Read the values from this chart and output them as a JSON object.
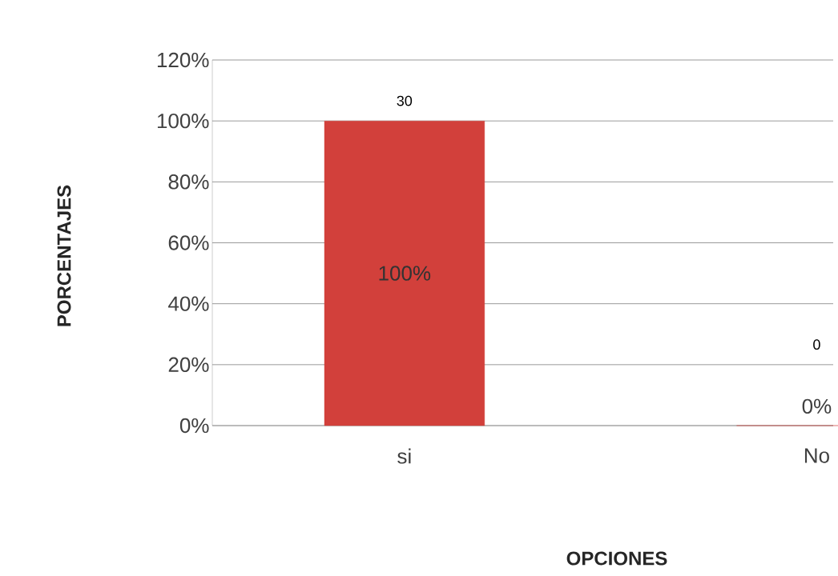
{
  "chart_data": {
    "type": "bar",
    "xlabel": "OPCIONES",
    "ylabel": "PORCENTAJES",
    "categories": [
      "si",
      "No"
    ],
    "values": [
      100,
      0
    ],
    "color": "#d2403b",
    "value_labels": [
      "100%",
      "0%"
    ],
    "annotations": [
      "30",
      "0"
    ],
    "ylim": [
      0,
      120
    ],
    "yticks": [
      {
        "value": 0,
        "label": "0%"
      },
      {
        "value": 20,
        "label": "20%"
      },
      {
        "value": 40,
        "label": "40%"
      },
      {
        "value": 60,
        "label": "60%"
      },
      {
        "value": 80,
        "label": "80%"
      },
      {
        "value": 100,
        "label": "100%"
      },
      {
        "value": 120,
        "label": "120%"
      }
    ],
    "grid": "y"
  }
}
